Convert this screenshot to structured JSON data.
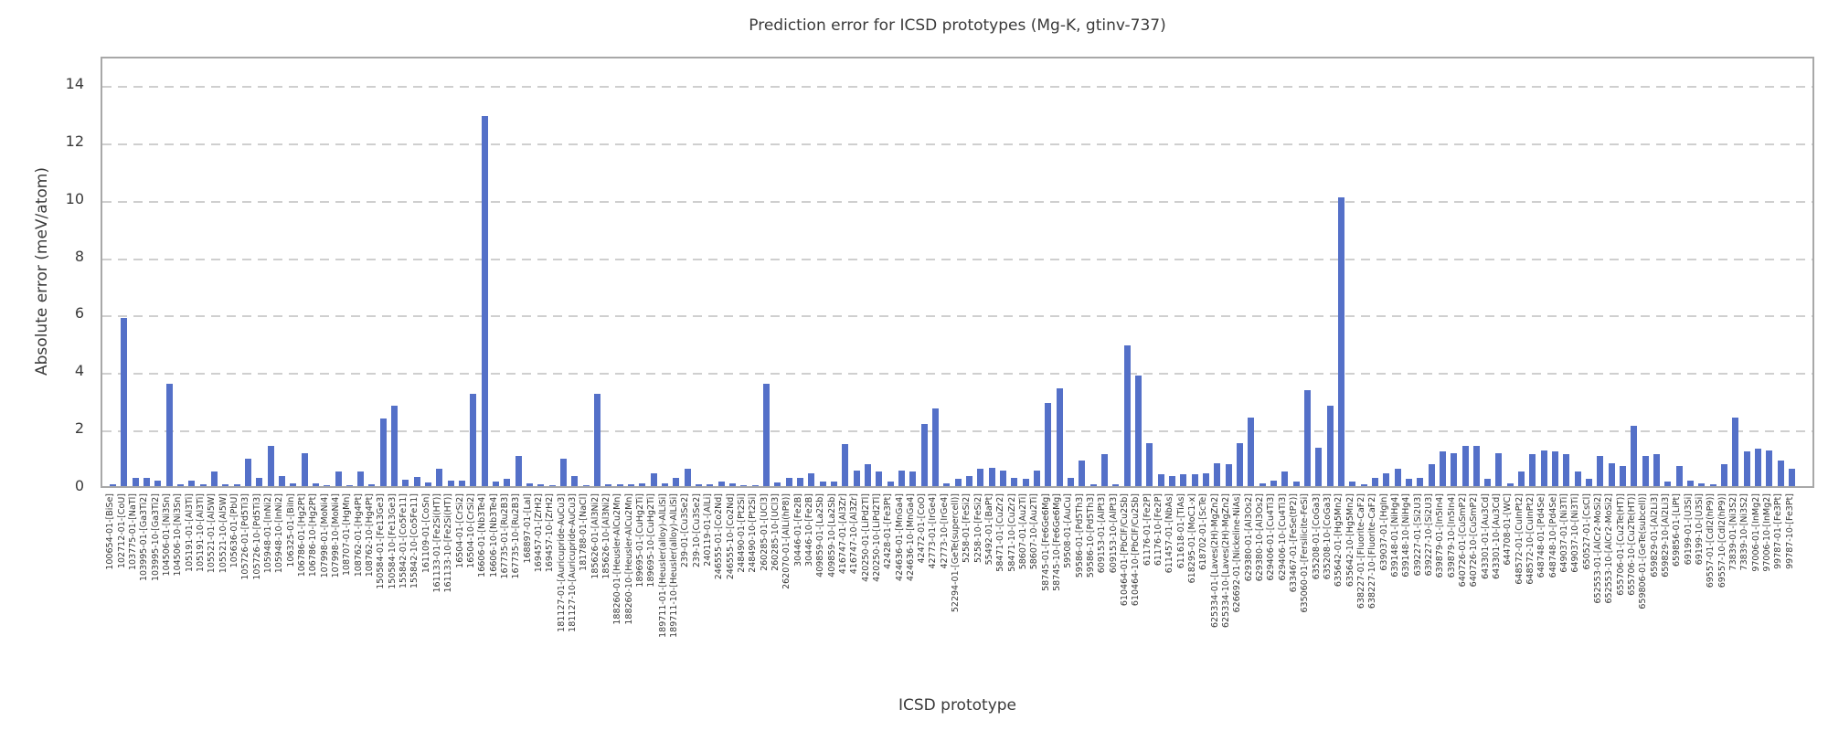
{
  "title": "Prediction error for ICSD prototypes (Mg-K, gtinv-737)",
  "chart_data": {
    "type": "bar",
    "title": "Prediction error for ICSD prototypes (Mg-K, gtinv-737)",
    "xlabel": "ICSD prototype",
    "ylabel": "Absolute error (meV/atom)",
    "ylim": [
      0,
      15
    ],
    "yticks": [
      0,
      2,
      4,
      6,
      8,
      10,
      12,
      14
    ],
    "grid": "horizontal-dashed",
    "legend": "none",
    "bar_color": "#5470c8",
    "grid_color": "#cfcfcf",
    "spine_color": "#a8a8a8",
    "text_color": "#3a3a3a",
    "categories": [
      "100654-01-[BiSe]",
      "102712-01-[CoU]",
      "103775-01-[NaTl]",
      "103995-01-[Ga3Ti2]",
      "103995-10-[Ga3Ti2]",
      "104506-01-[Ni3Sn]",
      "104506-10-[Ni3Sn]",
      "105191-01-[Al3Ti]",
      "105191-10-[Al3Ti]",
      "105521-01-[Al5W]",
      "105521-10-[Al5W]",
      "105636-01-[PbU]",
      "105726-01-[Pd5Ti3]",
      "105726-10-[Pd5Ti3]",
      "105948-01-[InNi2]",
      "105948-10-[InNi2]",
      "106325-01-[BiIn]",
      "106786-01-[Hg2Pt]",
      "106786-10-[Hg2Pt]",
      "107998-01-[MoNi4]",
      "107998-10-[MoNi4]",
      "108707-01-[HgMn]",
      "108762-01-[Hg4Pt]",
      "108762-10-[Hg4Pt]",
      "150584-01-[Fe13Ge3]",
      "150584-10-[Fe13Ge3]",
      "155842-01-[Co5Fe11]",
      "155842-10-[Co5Fe11]",
      "161109-01-[CoSn]",
      "161133-01-[Fe2Si(HT)]",
      "161133-10-[Fe2Si(HT)]",
      "16504-01-[CrSi2]",
      "16504-10-[CrSi2]",
      "16606-01-[Nb3Te4]",
      "16606-10-[Nb3Te4]",
      "167735-01-[Ru2B3]",
      "167735-10-[Ru2B3]",
      "168897-01-[LaI]",
      "169457-01-[ZrH2]",
      "169457-10-[ZrH2]",
      "181127-01-[Auricupride-AuCu3]",
      "181127-10-[Auricupride-AuCu3]",
      "181788-01-[NaCl]",
      "185626-01-[Al3Ni2]",
      "185626-10-[Al3Ni2]",
      "188260-01-[Heusler-AlCu2Mn]",
      "188260-10-[Heusler-AlCu2Mn]",
      "189695-01-[CuHg2Ti]",
      "189695-10-[CuHg2Ti]",
      "189711-01-[Heusler(alloy)-AlLiSi]",
      "189711-10-[Heusler(alloy)-AlLiSi]",
      "239-01-[Cu3Se2]",
      "239-10-[Cu3Se2]",
      "240119-01-[AlLi]",
      "246555-01-[Co2Nd]",
      "246555-10-[Co2Nd]",
      "248490-01-[Pt2Si]",
      "248490-10-[Pt2Si]",
      "260285-01-[UCl3]",
      "260285-10-[UCl3]",
      "262070-01-[AlLi(hP8)]",
      "30446-01-[Fe2B]",
      "30446-10-[Fe2B]",
      "409859-01-[La2Sb]",
      "409859-10-[La2Sb]",
      "416747-01-[Al3Zr]",
      "416747-10-[Al3Zr]",
      "420250-01-[LiPd2Tl]",
      "420250-10-[LiPd2Tl]",
      "42428-01-[Fe3Pt]",
      "424636-01-[MnGa4]",
      "424636-10-[MnGa4]",
      "42472-01-[CoO]",
      "42773-01-[IrGe4]",
      "42773-10-[IrGe4]",
      "52294-01-[GeTe(supercell)]",
      "5258-01-[FeSi2]",
      "5258-10-[FeSi2]",
      "55492-01-[BaPt]",
      "58471-01-[CuZr2]",
      "58471-10-[CuZr2]",
      "58607-01-[Au2Ti]",
      "58607-10-[Au2Ti]",
      "58745-01-[Fe6Ge6Mg]",
      "58745-10-[Fe6Ge6Mg]",
      "59508-01-[AuCu]",
      "59586-01-[Pd5Th3]",
      "59586-10-[Pd5Th3]",
      "609153-01-[AlPt3]",
      "609153-10-[AlPt3]",
      "610464-01-[PbClF/Cu2Sb]",
      "610464-10-[PbClF/Cu2Sb]",
      "61176-01-[Fe2P]",
      "61176-10-[Fe2P]",
      "611457-01-[NbAs]",
      "611618-01-[TiAs]",
      "618295-01-[MoC1-x]",
      "618702-01-[ScTe]",
      "625334-01-[Laves(2H)-MgZn2]",
      "625334-10-[Laves(2H)-MgZn2]",
      "626692-01-[Nickeline-NiAs]",
      "629380-01-[Al3Os2]",
      "629380-10-[Al3Os2]",
      "629406-01-[Cu4Ti3]",
      "629406-10-[Cu4Ti3]",
      "633467-01-[FeSe(tP2)]",
      "635060-01-[Fersilicite-FeSi]",
      "635208-01-[CoGa3]",
      "635208-10-[CoGa3]",
      "635642-01-[Hg5Mn2]",
      "635642-10-[Hg5Mn2]",
      "638227-01-[Fluorite-CaF2]",
      "638227-10-[Fluorite-CaF2]",
      "639037-01-[HgIn]",
      "639148-01-[NiHg4]",
      "639148-10-[NiHg4]",
      "639227-01-[Si2U3]",
      "639227-10-[Si2U3]",
      "639879-01-[In5In4]",
      "639879-10-[In5In4]",
      "640726-01-[CuSmP2]",
      "640726-10-[CuSmP2]",
      "643301-01-[Au3Cd]",
      "643301-10-[Au3Cd]",
      "644708-01-[WC]",
      "648572-01-[CuInPt2]",
      "648572-10-[CuInPt2]",
      "648748-01-[Pd4Se]",
      "648748-10-[Pd4Se]",
      "649037-01-[Ni3Ti]",
      "649037-10-[Ni3Ti]",
      "650527-01-[CsCl]",
      "652553-01-[AlCr2-MoSi2]",
      "652553-10-[AlCr2-MoSi2]",
      "655706-01-[Cu2Te(HT)]",
      "655706-10-[Cu2Te(HT)]",
      "659806-01-[GeTe(subcell)]",
      "659829-01-[Al2Li3]",
      "659829-10-[Al2Li3]",
      "659856-01-[LiPt]",
      "69199-01-[U3Si]",
      "69199-10-[U3Si]",
      "69557-01-[CdI2(hP9)]",
      "69557-10-[CdI2(hP9)]",
      "73839-01-[Ni3S2]",
      "73839-10-[Ni3S2]",
      "97006-01-[InMg2]",
      "97006-10-[InMg2]",
      "99787-01-[Fe3Pt]",
      "99787-10-[Fe3Pt]"
    ],
    "values": [
      0.05,
      5.85,
      0.3,
      0.3,
      0.2,
      3.55,
      0.07,
      0.2,
      0.05,
      0.5,
      0.05,
      0.07,
      0.95,
      0.3,
      1.4,
      0.35,
      0.08,
      1.15,
      0.08,
      0.03,
      0.5,
      0.03,
      0.5,
      0.07,
      2.35,
      2.8,
      0.22,
      0.33,
      0.12,
      0.62,
      0.2,
      0.2,
      3.2,
      12.9,
      0.15,
      0.27,
      1.05,
      0.1,
      0.05,
      0.03,
      0.95,
      0.35,
      0.03,
      3.2,
      0.05,
      0.05,
      0.07,
      0.08,
      0.45,
      0.1,
      0.3,
      0.6,
      0.05,
      0.07,
      0.17,
      0.1,
      0.03,
      0.03,
      3.55,
      0.13,
      0.3,
      0.28,
      0.45,
      0.16,
      0.16,
      1.45,
      0.55,
      0.75,
      0.5,
      0.15,
      0.55,
      0.5,
      2.15,
      2.7,
      0.1,
      0.25,
      0.35,
      0.6,
      0.65,
      0.55,
      0.3,
      0.25,
      0.55,
      2.9,
      3.4,
      0.3,
      0.9,
      0.05,
      1.1,
      0.05,
      4.9,
      3.85,
      1.5,
      0.4,
      0.35,
      0.4,
      0.4,
      0.45,
      0.8,
      0.75,
      1.5,
      2.4,
      0.1,
      0.2,
      0.5,
      0.15,
      3.35,
      1.35,
      2.8,
      10.05,
      0.15,
      0.05,
      0.3,
      0.45,
      0.6,
      0.25,
      0.3,
      0.75,
      1.2,
      1.15,
      1.4,
      1.4,
      0.25,
      1.15,
      0.1,
      0.5,
      1.1,
      1.25,
      1.2,
      1.1,
      0.5,
      0.25,
      1.05,
      0.8,
      0.7,
      2.1,
      1.05,
      1.1,
      0.15,
      0.7,
      0.2,
      0.1,
      0.05,
      0.75,
      2.4,
      1.2,
      1.3,
      1.25,
      0.9,
      0.6
    ]
  }
}
